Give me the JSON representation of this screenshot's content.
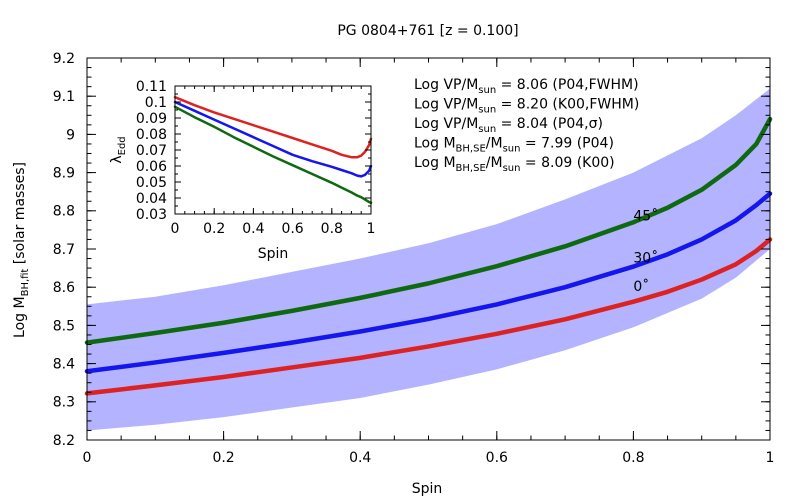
{
  "chart_data": [
    {
      "type": "line",
      "title": "PG 0804+761  [z = 0.100]",
      "xlabel": "Spin",
      "ylabel_main": "Log M",
      "ylabel_sub": "BH,fit",
      "ylabel_tail": "  [solar masses]",
      "xlim": [
        0,
        1
      ],
      "ylim": [
        8.2,
        9.2
      ],
      "xticks": [
        0,
        0.2,
        0.4,
        0.6,
        0.8,
        1
      ],
      "xtick_labels": [
        "0",
        "0.2",
        "0.4",
        "0.6",
        "0.8",
        "1"
      ],
      "yticks": [
        8.2,
        8.3,
        8.4,
        8.5,
        8.6,
        8.7,
        8.8,
        8.9,
        9,
        9.1,
        9.2
      ],
      "ytick_labels": [
        "8.2",
        "8.3",
        "8.4",
        "8.5",
        "8.6",
        "8.7",
        "8.8",
        "8.9",
        "9",
        "9.1",
        "9.2"
      ],
      "band": {
        "color": "#b3b3ff",
        "x": [
          0,
          0.1,
          0.2,
          0.3,
          0.4,
          0.5,
          0.6,
          0.7,
          0.8,
          0.9,
          0.95,
          1
        ],
        "lower": [
          8.225,
          8.24,
          8.26,
          8.285,
          8.31,
          8.345,
          8.385,
          8.435,
          8.495,
          8.57,
          8.625,
          8.7
        ],
        "upper": [
          8.555,
          8.575,
          8.605,
          8.64,
          8.675,
          8.715,
          8.765,
          8.83,
          8.9,
          8.99,
          9.05,
          9.12
        ]
      },
      "series": [
        {
          "name": "0˚",
          "color": "#dd2222",
          "label_color": "#8b1a6b",
          "label_x": 0.8,
          "label_y": 8.59,
          "x": [
            0,
            0.1,
            0.2,
            0.3,
            0.4,
            0.5,
            0.6,
            0.7,
            0.8,
            0.85,
            0.9,
            0.95,
            0.98,
            1
          ],
          "y": [
            8.322,
            8.343,
            8.365,
            8.39,
            8.415,
            8.445,
            8.478,
            8.516,
            8.562,
            8.588,
            8.62,
            8.66,
            8.695,
            8.725
          ]
        },
        {
          "name": "30˚",
          "color": "#1515ee",
          "label_color": "#1515ee",
          "label_x": 0.8,
          "label_y": 8.665,
          "x": [
            0,
            0.1,
            0.2,
            0.3,
            0.4,
            0.5,
            0.6,
            0.7,
            0.8,
            0.85,
            0.9,
            0.95,
            0.98,
            1
          ],
          "y": [
            8.38,
            8.403,
            8.428,
            8.455,
            8.484,
            8.517,
            8.555,
            8.6,
            8.654,
            8.686,
            8.725,
            8.775,
            8.815,
            8.845
          ]
        },
        {
          "name": "45˚",
          "color": "#0f6a0f",
          "label_color": "#1a3a6a",
          "label_x": 0.8,
          "label_y": 8.775,
          "x": [
            0,
            0.1,
            0.2,
            0.3,
            0.4,
            0.5,
            0.6,
            0.7,
            0.8,
            0.85,
            0.9,
            0.95,
            0.98,
            1
          ],
          "y": [
            8.455,
            8.48,
            8.507,
            8.538,
            8.572,
            8.61,
            8.655,
            8.707,
            8.77,
            8.808,
            8.855,
            8.92,
            8.975,
            9.04
          ]
        }
      ],
      "annotations": [
        {
          "pre": "Log VP/M",
          "sub": "sun",
          "post": " = 8.06 (P04,FWHM)"
        },
        {
          "pre": "Log VP/M",
          "sub": "sun",
          "post": " = 8.20 (K00,FWHM)"
        },
        {
          "pre": "Log VP/M",
          "sub": "sun",
          "post": " = 8.04 (P04,σ)"
        },
        {
          "pre": "Log M",
          "sub": "BH,SE",
          "mid": "/M",
          "sub2": "sun",
          "post": " = 7.99 (P04)"
        },
        {
          "pre": "Log M",
          "sub": "BH,SE",
          "mid": "/M",
          "sub2": "sun",
          "post": " = 8.09 (K00)"
        }
      ]
    },
    {
      "type": "line",
      "title": "",
      "xlabel": "Spin",
      "ylabel_main": "λ",
      "ylabel_sub": "Edd",
      "xlim": [
        0,
        1
      ],
      "ylim": [
        0.03,
        0.11
      ],
      "xticks": [
        0,
        0.2,
        0.4,
        0.6,
        0.8,
        1
      ],
      "xtick_labels": [
        "0",
        "0.2",
        "0.4",
        "0.6",
        "0.8",
        "1"
      ],
      "yticks": [
        0.03,
        0.04,
        0.05,
        0.06,
        0.07,
        0.08,
        0.09,
        0.1,
        0.11
      ],
      "ytick_labels": [
        "0.03",
        "0.04",
        "0.05",
        "0.06",
        "0.07",
        "0.08",
        "0.09",
        "0.1",
        "0.11"
      ],
      "series": [
        {
          "name": "0˚",
          "color": "#dd2222",
          "x": [
            0,
            0.1,
            0.2,
            0.3,
            0.4,
            0.5,
            0.6,
            0.7,
            0.8,
            0.85,
            0.9,
            0.93,
            0.95,
            0.97,
            0.99,
            1
          ],
          "y": [
            0.103,
            0.098,
            0.0935,
            0.0895,
            0.0855,
            0.0815,
            0.0775,
            0.0735,
            0.0695,
            0.067,
            0.0655,
            0.0655,
            0.0665,
            0.069,
            0.073,
            0.077
          ]
        },
        {
          "name": "30˚",
          "color": "#1515ee",
          "x": [
            0,
            0.1,
            0.2,
            0.3,
            0.4,
            0.5,
            0.6,
            0.7,
            0.8,
            0.85,
            0.9,
            0.93,
            0.95,
            0.97,
            0.99,
            1
          ],
          "y": [
            0.1,
            0.0945,
            0.089,
            0.0835,
            0.078,
            0.0725,
            0.067,
            0.063,
            0.0595,
            0.0575,
            0.0555,
            0.054,
            0.0535,
            0.0545,
            0.057,
            0.06
          ]
        },
        {
          "name": "45˚",
          "color": "#0f6a0f",
          "x": [
            0,
            0.1,
            0.2,
            0.3,
            0.4,
            0.5,
            0.6,
            0.7,
            0.8,
            0.85,
            0.9,
            0.93,
            0.95,
            0.97,
            0.99,
            1
          ],
          "y": [
            0.097,
            0.0905,
            0.0845,
            0.078,
            0.072,
            0.066,
            0.0605,
            0.055,
            0.0495,
            0.0465,
            0.0435,
            0.0415,
            0.0405,
            0.039,
            0.0375,
            0.037
          ]
        }
      ]
    }
  ]
}
